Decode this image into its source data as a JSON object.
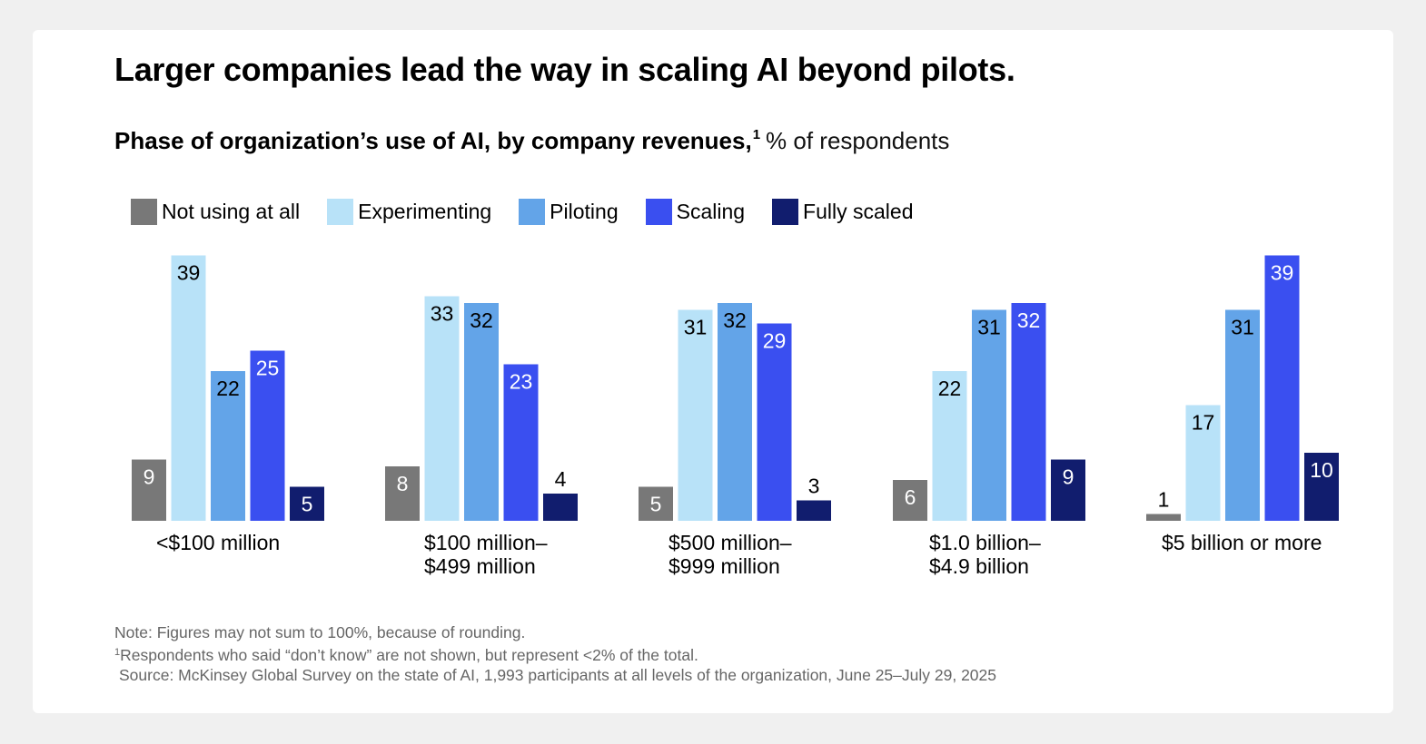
{
  "title": "Larger companies lead the way in scaling AI beyond pilots.",
  "subtitle": {
    "main": "Phase of organization’s use of AI, by company revenues,",
    "footnote_mark": "1",
    "unit": "% of respondents"
  },
  "notes": {
    "note": "Note: Figures may not sum to 100%, because of rounding.",
    "footnote_mark": "1",
    "footnote": "Respondents who said “don’t know” are not shown, but represent <2% of the total.",
    "source": "Source: McKinsey Global Survey on the state of AI, 1,993 participants at all levels of the organization, June 25–July 29, 2025"
  },
  "chart_data": {
    "type": "bar",
    "title": "Phase of organization’s use of AI, by company revenues",
    "ylabel": "% of respondents",
    "xlabel": "",
    "ylim": [
      0,
      40
    ],
    "grid": false,
    "legend_position": "top-left",
    "categories": [
      {
        "line1": "<$100 million",
        "line2": ""
      },
      {
        "line1": "$100 million–",
        "line2": "$499 million"
      },
      {
        "line1": "$500 million–",
        "line2": "$999 million"
      },
      {
        "line1": "$1.0 billion–",
        "line2": "$4.9 billion"
      },
      {
        "line1": "$5 billion or more",
        "line2": ""
      }
    ],
    "series": [
      {
        "name": "Not using at all",
        "color": "#787878",
        "label_color": "#ffffff",
        "values": [
          9,
          8,
          5,
          6,
          1
        ]
      },
      {
        "name": "Experimenting",
        "color": "#b8e2f8",
        "label_color": "#000000",
        "values": [
          39,
          33,
          31,
          22,
          17
        ]
      },
      {
        "name": "Piloting",
        "color": "#63a4e8",
        "label_color": "#000000",
        "values": [
          22,
          32,
          32,
          31,
          31
        ]
      },
      {
        "name": "Scaling",
        "color": "#3a4ff0",
        "label_color": "#ffffff",
        "values": [
          25,
          23,
          29,
          32,
          39
        ]
      },
      {
        "name": "Fully scaled",
        "color": "#111d6e",
        "label_color": "#ffffff",
        "values": [
          5,
          4,
          3,
          9,
          10
        ]
      }
    ]
  }
}
